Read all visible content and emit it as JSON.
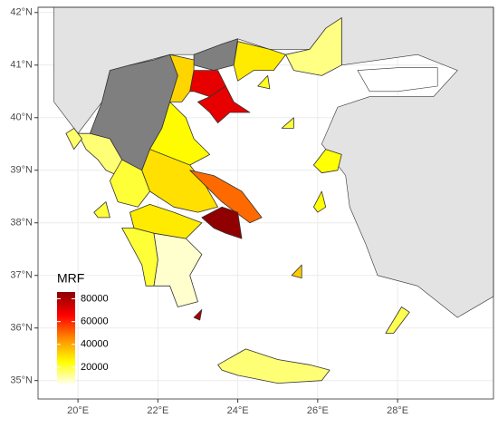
{
  "chart_data": {
    "type": "choropleth",
    "xlim": [
      19,
      30.4
    ],
    "ylim": [
      34.65,
      42.1
    ],
    "xticks": [
      {
        "value": 20,
        "label": "20°E"
      },
      {
        "value": 22,
        "label": "22°E"
      },
      {
        "value": 24,
        "label": "24°E"
      },
      {
        "value": 26,
        "label": "26°E"
      },
      {
        "value": 28,
        "label": "28°E"
      }
    ],
    "yticks": [
      {
        "value": 35,
        "label": "35°N"
      },
      {
        "value": 36,
        "label": "36°N"
      },
      {
        "value": 37,
        "label": "37°N"
      },
      {
        "value": 38,
        "label": "38°N"
      },
      {
        "value": 39,
        "label": "39°N"
      },
      {
        "value": 40,
        "label": "40°N"
      },
      {
        "value": 41,
        "label": "41°N"
      },
      {
        "value": 42,
        "label": "42°N"
      }
    ],
    "grid": true,
    "legend_title": "MRF",
    "legend_ticks": [
      20000,
      40000,
      60000,
      80000
    ],
    "colorlim": [
      4000,
      86000
    ],
    "colors": [
      "#ffffff",
      "#ffff00",
      "#ff8c00",
      "#ff0000",
      "#8b0000"
    ],
    "na_color": "#7f7f7f",
    "values": [
      null,
      null,
      15000,
      25000,
      32000,
      70000,
      70000,
      28000,
      14000,
      20000,
      30000,
      50000,
      85000,
      28000,
      20000,
      8000,
      15000,
      24000,
      18000,
      16000,
      20000,
      24000,
      20000,
      34000,
      80000,
      22000
    ]
  }
}
